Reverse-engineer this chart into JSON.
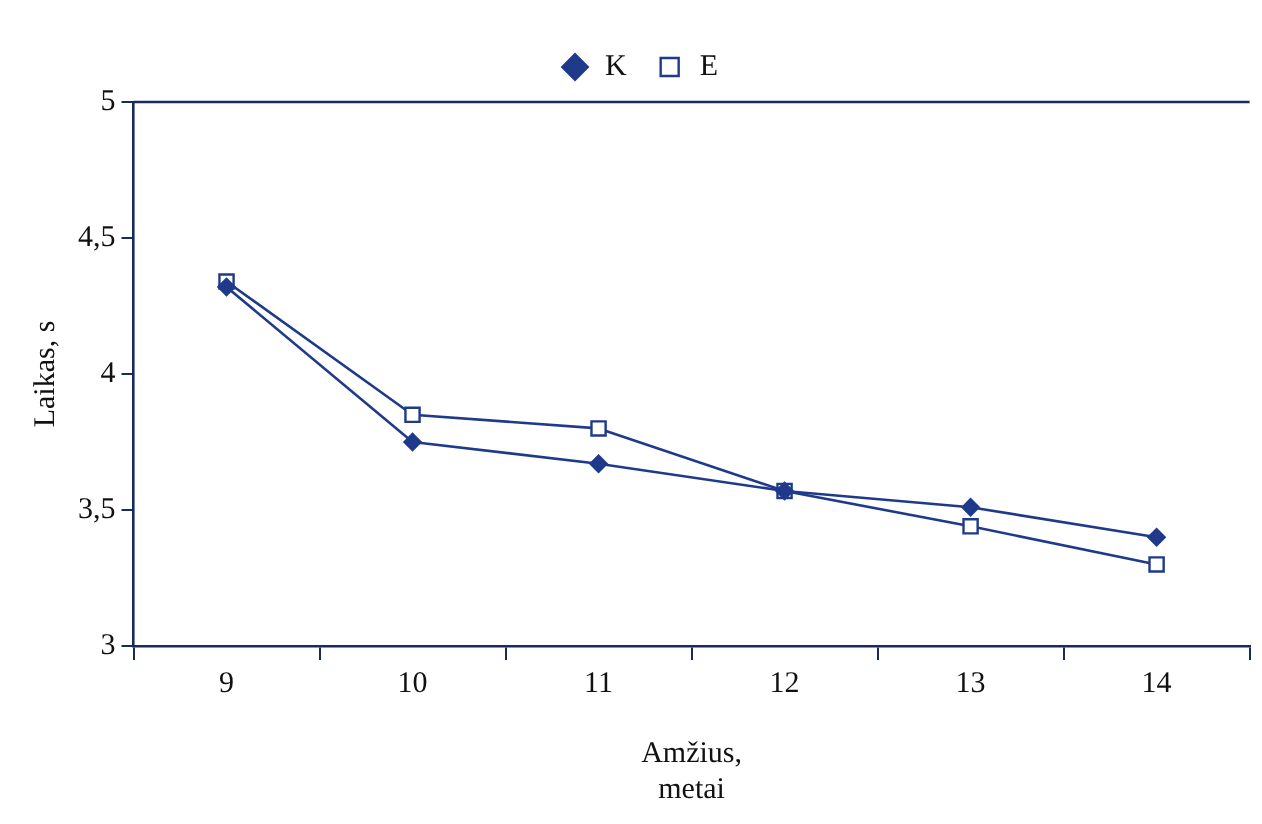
{
  "chart_data": {
    "type": "line",
    "xlabel": "Amžius,\nmetai",
    "ylabel": "Laikas, s",
    "categories": [
      "9",
      "10",
      "11",
      "12",
      "13",
      "14"
    ],
    "series": [
      {
        "name": "K",
        "color": "#1f3a8a",
        "marker": "diamond",
        "values": [
          4.32,
          3.75,
          3.67,
          3.57,
          3.51,
          3.4
        ]
      },
      {
        "name": "E",
        "color": "#1f3a8a",
        "marker": "square",
        "values": [
          4.34,
          3.85,
          3.8,
          3.57,
          3.44,
          3.3
        ]
      }
    ],
    "ylim": [
      3,
      5
    ],
    "yticks": [
      {
        "value": 3,
        "label": "3"
      },
      {
        "value": 3.5,
        "label": "3,5"
      },
      {
        "value": 4,
        "label": "4"
      },
      {
        "value": 4.5,
        "label": "4,5"
      },
      {
        "value": 5,
        "label": "5"
      }
    ],
    "grid": false,
    "legend": "top",
    "line_style": "solid"
  }
}
